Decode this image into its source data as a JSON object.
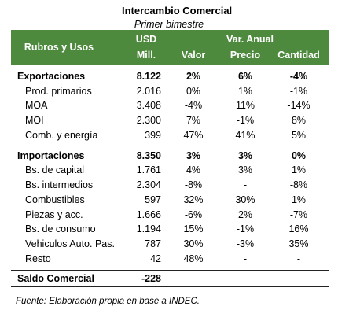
{
  "title": "Intercambio Comercial",
  "subtitle": "Primer bimestre",
  "header": {
    "rubros": "Rubros y Usos",
    "usd": "USD",
    "mill": "Mill.",
    "var": "Var. Anual",
    "valor": "Valor",
    "precio": "Precio",
    "cantidad": "Cantidad"
  },
  "sections": [
    {
      "total": [
        "Exportaciones",
        "8.122",
        "2%",
        "6%",
        "-4%"
      ],
      "items": [
        [
          "Prod. primarios",
          "2.016",
          "0%",
          "1%",
          "-1%"
        ],
        [
          "MOA",
          "3.408",
          "-4%",
          "11%",
          "-14%"
        ],
        [
          "MOI",
          "2.300",
          "7%",
          "-1%",
          "8%"
        ],
        [
          "Comb. y energía",
          "399",
          "47%",
          "41%",
          "5%"
        ]
      ]
    },
    {
      "total": [
        "Importaciones",
        "8.350",
        "3%",
        "3%",
        "0%"
      ],
      "items": [
        [
          "Bs. de capital",
          "1.761",
          "4%",
          "3%",
          "1%"
        ],
        [
          "Bs. intermedios",
          "2.304",
          "-8%",
          "-",
          "-8%"
        ],
        [
          "Combustibles",
          "597",
          "32%",
          "30%",
          "1%"
        ],
        [
          "Piezas y acc.",
          "1.666",
          "-6%",
          "2%",
          "-7%"
        ],
        [
          "Bs. de consumo",
          "1.194",
          "15%",
          "-1%",
          "16%"
        ],
        [
          "Vehiculos Auto. Pas.",
          "787",
          "30%",
          "-3%",
          "35%"
        ],
        [
          "Resto",
          "42",
          "48%",
          "-",
          "-"
        ]
      ]
    }
  ],
  "saldo": [
    "Saldo Comercial",
    "-228"
  ],
  "footer": "Fuente: Elaboración propia en base a INDEC."
}
